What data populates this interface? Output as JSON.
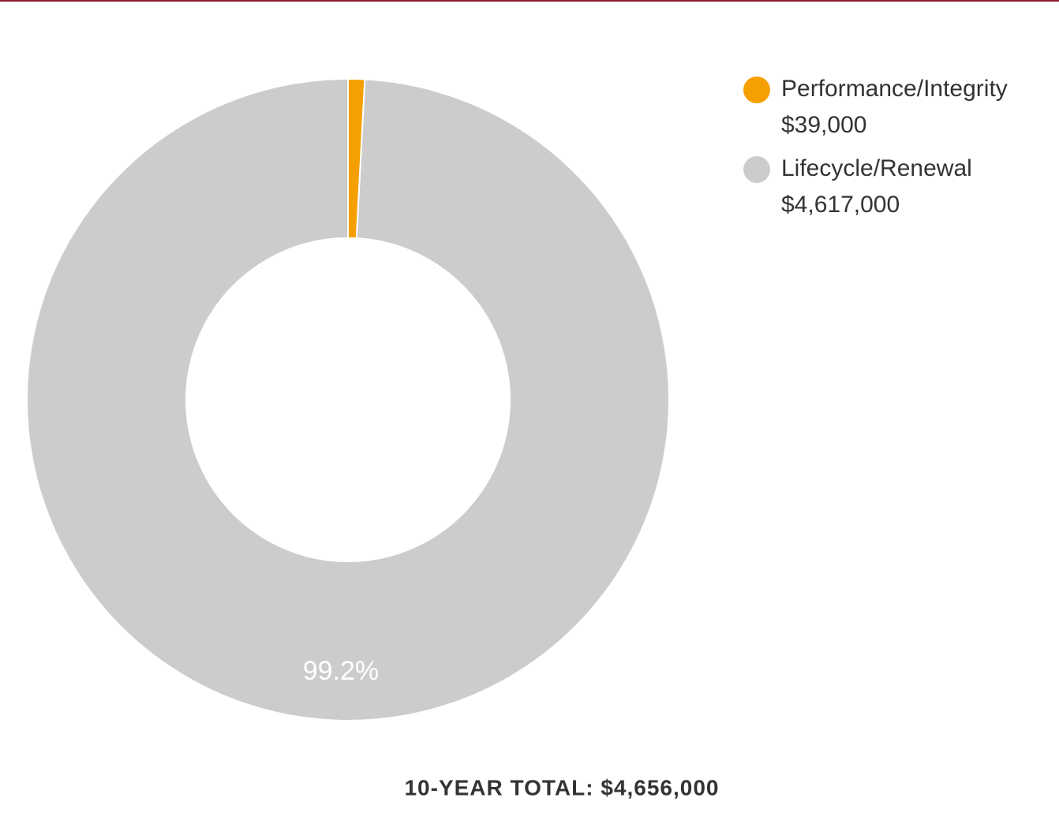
{
  "chart_data": {
    "type": "donut",
    "categories": [
      "Performance/Integrity",
      "Lifecycle/Renewal"
    ],
    "values": [
      39000,
      4617000
    ],
    "value_labels": [
      "$39,000",
      "$4,617,000"
    ],
    "percent_labels": [
      null,
      "99.2%"
    ],
    "colors": [
      "#f5a000",
      "#cccccc"
    ],
    "total_label": "10-YEAR TOTAL: $4,656,000"
  }
}
